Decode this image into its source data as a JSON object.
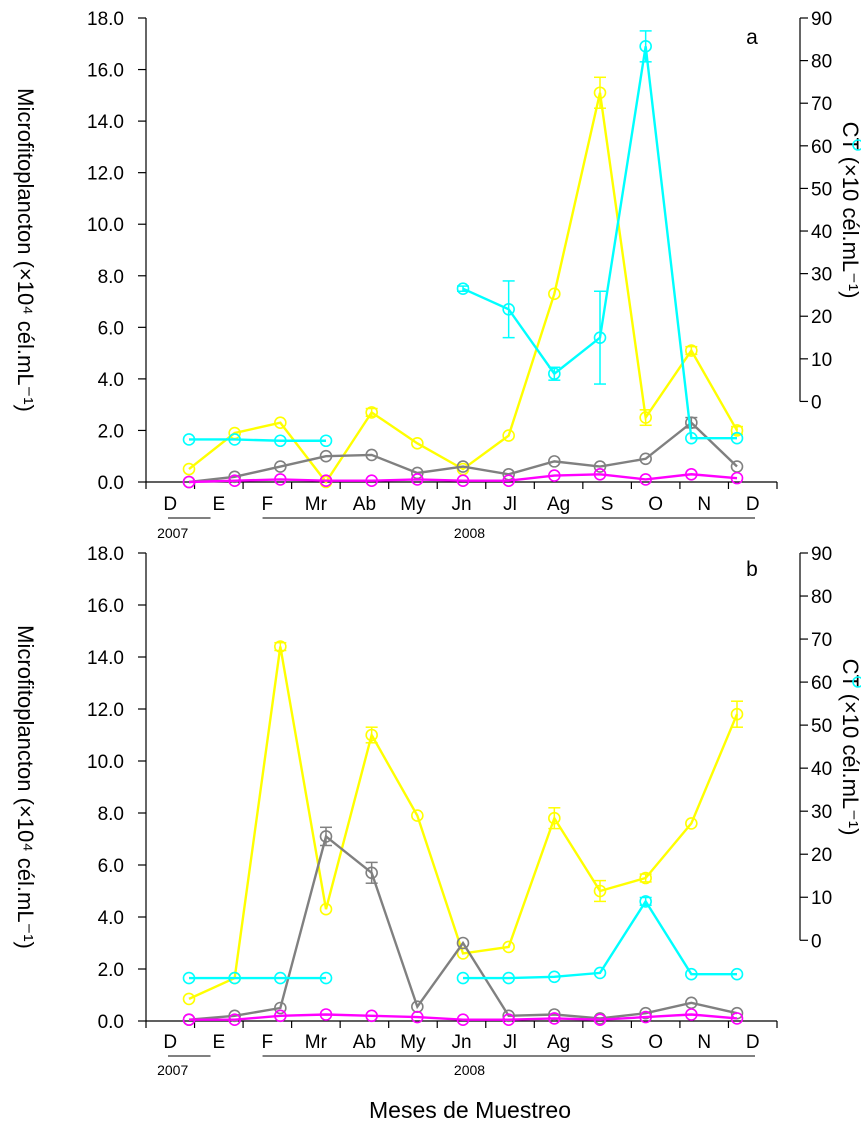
{
  "chart_data": [
    {
      "type": "line",
      "panel_label": "a",
      "categories": [
        "D",
        "E",
        "F",
        "Mr",
        "Ab",
        "My",
        "Jn",
        "Jl",
        "Ag",
        "S",
        "O",
        "N",
        "D"
      ],
      "year_labels": [
        "2007",
        "2008"
      ],
      "xlabel": "",
      "ylabel_left": "Microfitoplancton (×10⁴ cél.mL⁻¹)",
      "ylabel_right": "CT (×10 cél.mL⁻¹)",
      "ylim_left": [
        0,
        18
      ],
      "yticks_left": [
        "0.0",
        "2.0",
        "4.0",
        "6.0",
        "8.0",
        "10.0",
        "12.0",
        "14.0",
        "16.0",
        "18.0"
      ],
      "ylim_right": [
        0,
        90
      ],
      "yticks_right": [
        "0",
        "10",
        "20",
        "30",
        "40",
        "50",
        "60",
        "70",
        "80",
        "90"
      ],
      "series": [
        {
          "color": "#ffff00",
          "axis": "left",
          "values": [
            0.5,
            1.9,
            2.3,
            0.0,
            2.7,
            1.5,
            0.5,
            1.8,
            7.3,
            15.1,
            2.5,
            5.1,
            2.0
          ],
          "errors": [
            0,
            0,
            0,
            0,
            0.15,
            0,
            0,
            0,
            0,
            0.6,
            0.3,
            0.15,
            0.15
          ]
        },
        {
          "color": "#808080",
          "axis": "left",
          "values": [
            0.0,
            0.2,
            0.6,
            1.0,
            1.05,
            0.35,
            0.6,
            0.3,
            0.8,
            0.6,
            0.9,
            2.3,
            0.6
          ],
          "errors": [
            0,
            0,
            0,
            0,
            0,
            0,
            0,
            0,
            0,
            0,
            0,
            0.2,
            0
          ]
        },
        {
          "color": "#ff00ff",
          "axis": "left",
          "values": [
            0.0,
            0.05,
            0.1,
            0.05,
            0.05,
            0.1,
            0.05,
            0.05,
            0.25,
            0.3,
            0.1,
            0.3,
            0.15
          ],
          "errors": [
            0,
            0,
            0,
            0,
            0,
            0,
            0,
            0,
            0,
            0,
            0,
            0,
            0
          ]
        },
        {
          "color": "#00ffff",
          "axis": "right",
          "segments": [
            {
              "x": [
                "D",
                "E",
                "F",
                "Mr"
              ],
              "values": [
                1.65,
                1.65,
                1.6,
                1.6
              ],
              "errors": [
                0,
                0,
                0,
                0
              ]
            },
            {
              "x": [
                "Jn",
                "Jl",
                "Ag",
                "S",
                "O",
                "N",
                "D"
              ],
              "values": [
                7.5,
                6.7,
                4.2,
                5.6,
                16.9,
                1.7,
                1.7
              ],
              "errors": [
                0.1,
                1.1,
                0.25,
                1.8,
                0.6,
                0,
                0
              ]
            }
          ]
        }
      ]
    },
    {
      "type": "line",
      "panel_label": "b",
      "categories": [
        "D",
        "E",
        "F",
        "Mr",
        "Ab",
        "My",
        "Jn",
        "Jl",
        "Ag",
        "S",
        "O",
        "N",
        "D"
      ],
      "year_labels": [
        "2007",
        "2008"
      ],
      "xlabel": "Meses de Muestreo",
      "ylabel_left": "Microfitoplancton (×10⁴ cél.mL⁻¹)",
      "ylabel_right": "CT (×10 cél.mL⁻¹)",
      "ylim_left": [
        0,
        18
      ],
      "yticks_left": [
        "0.0",
        "2.0",
        "4.0",
        "6.0",
        "8.0",
        "10.0",
        "12.0",
        "14.0",
        "16.0",
        "18.0"
      ],
      "ylim_right": [
        0,
        90
      ],
      "yticks_right": [
        "0",
        "10",
        "20",
        "30",
        "40",
        "50",
        "60",
        "70",
        "80",
        "90"
      ],
      "series": [
        {
          "color": "#ffff00",
          "axis": "left",
          "values": [
            0.85,
            1.65,
            14.4,
            4.3,
            11.0,
            7.9,
            2.6,
            2.85,
            7.8,
            5.0,
            5.5,
            7.6,
            11.8
          ],
          "errors": [
            0,
            0,
            0.15,
            0,
            0.3,
            0,
            0,
            0,
            0.4,
            0.4,
            0.15,
            0,
            0.5
          ]
        },
        {
          "color": "#808080",
          "axis": "left",
          "values": [
            0.05,
            0.2,
            0.5,
            7.1,
            5.7,
            0.55,
            3.0,
            0.2,
            0.25,
            0.1,
            0.3,
            0.7,
            0.3
          ],
          "errors": [
            0,
            0,
            0,
            0.35,
            0.4,
            0,
            0,
            0,
            0,
            0,
            0,
            0,
            0
          ]
        },
        {
          "color": "#ff00ff",
          "axis": "left",
          "values": [
            0.05,
            0.05,
            0.2,
            0.25,
            0.2,
            0.15,
            0.05,
            0.05,
            0.1,
            0.05,
            0.15,
            0.25,
            0.1
          ],
          "errors": [
            0,
            0,
            0,
            0,
            0,
            0,
            0,
            0,
            0,
            0,
            0,
            0,
            0
          ]
        },
        {
          "color": "#00ffff",
          "axis": "right",
          "segments": [
            {
              "x": [
                "D",
                "E",
                "F",
                "Mr"
              ],
              "values": [
                1.65,
                1.65,
                1.65,
                1.65
              ],
              "errors": [
                0,
                0,
                0,
                0
              ]
            },
            {
              "x": [
                "Jn",
                "Jl",
                "Ag",
                "S",
                "O",
                "N",
                "D"
              ],
              "values": [
                1.65,
                1.65,
                1.7,
                1.85,
                4.6,
                1.8,
                1.8
              ],
              "errors": [
                0,
                0,
                0,
                0,
                0.15,
                0,
                0
              ]
            }
          ]
        }
      ]
    }
  ]
}
